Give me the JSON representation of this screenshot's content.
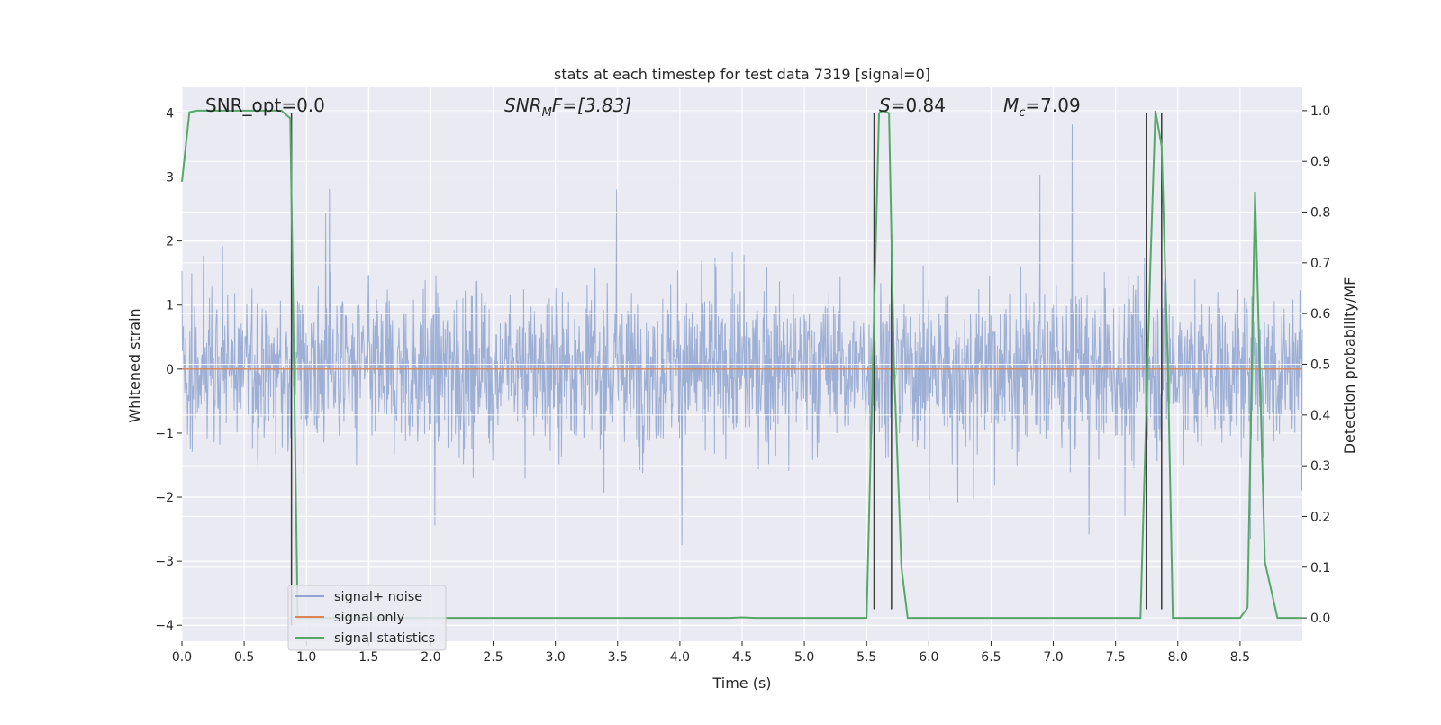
{
  "chart_data": {
    "type": "line",
    "title": "stats at each timestep for test data 7319 [signal=0]",
    "xlabel": "Time (s)",
    "ylabel_left": "Whitened strain",
    "ylabel_right": "Detection probability/MF",
    "xlim": [
      0.0,
      9.0
    ],
    "ylim_left": [
      -4.25,
      4.4
    ],
    "ylim_right": [
      -0.046,
      1.046
    ],
    "x_ticks": [
      "0.0",
      "0.5",
      "1.0",
      "1.5",
      "2.0",
      "2.5",
      "3.0",
      "3.5",
      "4.0",
      "4.5",
      "5.0",
      "5.5",
      "6.0",
      "6.5",
      "7.0",
      "7.5",
      "8.0",
      "8.5"
    ],
    "x_tick_values": [
      0,
      0.5,
      1,
      1.5,
      2,
      2.5,
      3,
      3.5,
      4,
      4.5,
      5,
      5.5,
      6,
      6.5,
      7,
      7.5,
      8,
      8.5
    ],
    "y_ticks_left": [
      "4",
      "3",
      "2",
      "1",
      "0",
      "−1",
      "−2",
      "−3",
      "−4"
    ],
    "y_tick_values_left": [
      4,
      3,
      2,
      1,
      0,
      -1,
      -2,
      -3,
      -4
    ],
    "y_ticks_right": [
      "1.0",
      "0.9",
      "0.8",
      "0.7",
      "0.6",
      "0.5",
      "0.4",
      "0.3",
      "0.2",
      "0.1",
      "0.0"
    ],
    "y_tick_values_right": [
      1.0,
      0.9,
      0.8,
      0.7,
      0.6,
      0.5,
      0.4,
      0.3,
      0.2,
      0.1,
      0.0
    ],
    "annotations": {
      "snr_opt": "SNR_opt=0.0",
      "snr_mf_main": "SNR",
      "snr_mf_sub": "M",
      "snr_mf_rest": "F=[3.83]",
      "s_main": "S",
      "s_rest": "=0.84",
      "mc_main": "M",
      "mc_sub": "c",
      "mc_rest": "=7.09"
    },
    "series": [
      {
        "name": "signal+ noise",
        "color": "#8fa5cf",
        "axis": "left",
        "description": "whitened strain noise, roughly uniform band about ±1.5 with spikes to about ±3.8",
        "band_sigma": 0.9,
        "max_abs": 3.82
      },
      {
        "name": "signal only",
        "color": "#dd8452",
        "axis": "left",
        "x": [
          0.0,
          9.0
        ],
        "y": [
          0.0,
          0.0
        ]
      },
      {
        "name": "signal statistics",
        "color": "#55a868",
        "axis": "right",
        "x": [
          0.0,
          0.06,
          0.12,
          0.3,
          0.5,
          0.7,
          0.8,
          0.87,
          0.9,
          0.93,
          0.96,
          1.0,
          1.5,
          2.0,
          2.5,
          3.0,
          3.5,
          4.0,
          4.4,
          4.5,
          4.6,
          5.0,
          5.4,
          5.5,
          5.55,
          5.6,
          5.63,
          5.68,
          5.72,
          5.78,
          5.83,
          6.0,
          6.5,
          7.0,
          7.5,
          7.7,
          7.78,
          7.82,
          7.87,
          7.92,
          7.96,
          8.0,
          8.5,
          8.56,
          8.62,
          8.7,
          8.8,
          9.0
        ],
        "y": [
          0.86,
          0.997,
          1.0,
          1.0,
          1.0,
          1.0,
          1.0,
          0.985,
          0.5,
          0.0,
          0.0,
          0.0,
          0.0,
          0.0,
          0.0,
          0.0,
          0.0,
          0.0,
          0.0,
          0.001,
          0.0,
          0.0,
          0.0,
          0.0,
          0.5,
          0.995,
          1.0,
          0.995,
          0.5,
          0.1,
          0.0,
          0.0,
          0.0,
          0.0,
          0.0,
          0.0,
          0.7,
          1.0,
          0.93,
          0.5,
          0.0,
          0.0,
          0.0,
          0.02,
          0.84,
          0.11,
          0.0,
          0.0
        ]
      }
    ],
    "event_lines": [
      {
        "x": 0.88,
        "y0": -4.0,
        "y1": 4.0
      },
      {
        "x": 5.56,
        "y0": -3.75,
        "y1": 4.0
      },
      {
        "x": 5.7,
        "y0": -3.75,
        "y1": 2.1
      },
      {
        "x": 7.75,
        "y0": -3.75,
        "y1": 4.0
      },
      {
        "x": 7.87,
        "y0": -3.75,
        "y1": 4.0
      }
    ],
    "legend": {
      "location": "lower-left",
      "entries": [
        "signal+ noise",
        "signal only",
        "signal statistics"
      ]
    },
    "grid": true
  }
}
